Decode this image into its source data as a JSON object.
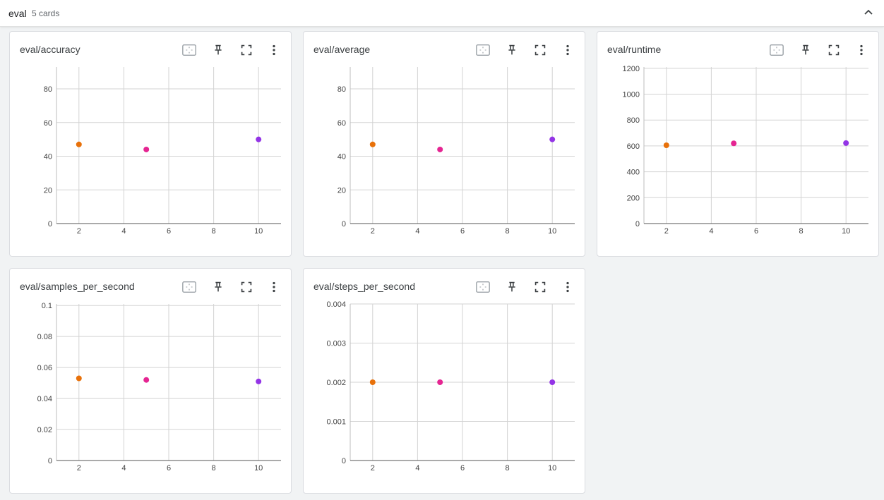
{
  "group": {
    "name": "eval",
    "count_label": "5 cards"
  },
  "toolbar_icons": [
    "fit-domain-icon",
    "pin-icon",
    "fullscreen-icon",
    "more-vert-icon"
  ],
  "series_colors": [
    "#e8710a",
    "#e52592",
    "#9334e6"
  ],
  "cards": [
    {
      "title": "eval/accuracy",
      "chart_data": {
        "type": "scatter",
        "x": [
          2,
          5,
          10
        ],
        "values": [
          47,
          44,
          50
        ],
        "xticks": [
          2,
          4,
          6,
          8,
          10
        ],
        "yticks": [
          0,
          20,
          40,
          60,
          80
        ],
        "ytick_labels": [
          "0",
          "20",
          "40",
          "60",
          "80"
        ],
        "xlim": [
          1,
          11
        ],
        "ylim": [
          0,
          93
        ],
        "grid": true
      }
    },
    {
      "title": "eval/average",
      "chart_data": {
        "type": "scatter",
        "x": [
          2,
          5,
          10
        ],
        "values": [
          47,
          44,
          50
        ],
        "xticks": [
          2,
          4,
          6,
          8,
          10
        ],
        "yticks": [
          0,
          20,
          40,
          60,
          80
        ],
        "ytick_labels": [
          "0",
          "20",
          "40",
          "60",
          "80"
        ],
        "xlim": [
          1,
          11
        ],
        "ylim": [
          0,
          93
        ],
        "grid": true
      }
    },
    {
      "title": "eval/runtime",
      "chart_data": {
        "type": "scatter",
        "x": [
          2,
          5,
          10
        ],
        "values": [
          605,
          620,
          622
        ],
        "xticks": [
          2,
          4,
          6,
          8,
          10
        ],
        "yticks": [
          0,
          200,
          400,
          600,
          800,
          1000,
          1200
        ],
        "ytick_labels": [
          "0",
          "200",
          "400",
          "600",
          "800",
          "1000",
          "1200"
        ],
        "xlim": [
          1,
          11
        ],
        "ylim": [
          0,
          1210
        ],
        "grid": true
      }
    },
    {
      "title": "eval/samples_per_second",
      "chart_data": {
        "type": "scatter",
        "x": [
          2,
          5,
          10
        ],
        "values": [
          0.053,
          0.052,
          0.051
        ],
        "xticks": [
          2,
          4,
          6,
          8,
          10
        ],
        "yticks": [
          0,
          0.02,
          0.04,
          0.06,
          0.08,
          0.1
        ],
        "ytick_labels": [
          "0",
          "0.02",
          "0.04",
          "0.06",
          "0.08",
          "0.1"
        ],
        "xlim": [
          1,
          11
        ],
        "ylim": [
          0,
          0.101
        ],
        "grid": true
      }
    },
    {
      "title": "eval/steps_per_second",
      "chart_data": {
        "type": "scatter",
        "x": [
          2,
          5,
          10
        ],
        "values": [
          0.002,
          0.002,
          0.002
        ],
        "xticks": [
          2,
          4,
          6,
          8,
          10
        ],
        "yticks": [
          0,
          0.001,
          0.002,
          0.003,
          0.004
        ],
        "ytick_labels": [
          "0",
          "0.001",
          "0.002",
          "0.003",
          "0.004"
        ],
        "xlim": [
          1,
          11
        ],
        "ylim": [
          0,
          0.004
        ],
        "grid": true
      }
    }
  ]
}
